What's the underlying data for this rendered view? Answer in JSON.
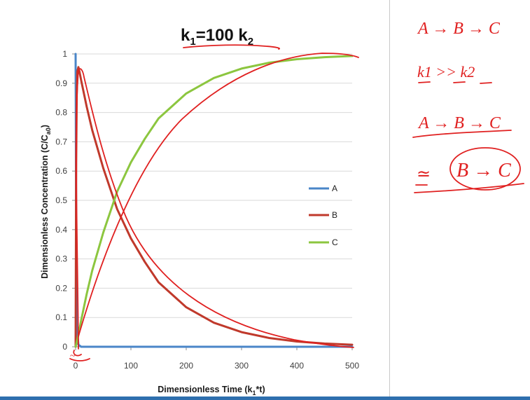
{
  "chart_data": {
    "type": "line",
    "title": "k1=100 k2",
    "title_parts": {
      "k": "k",
      "sub1": "1",
      "mid": "=100 k",
      "sub2": "2"
    },
    "xlabel": "Dimensionless Time (k1*t)",
    "xlabel_parts": {
      "pre": "Dimensionless Time (k",
      "sub": "1",
      "post": "*t)"
    },
    "ylabel": "Dimensionless Concentration (C/Ca0)",
    "ylabel_parts": {
      "pre": "Dimensionless Concentration (C/C",
      "sub": "a0",
      "post": ")"
    },
    "xlim": [
      0,
      500
    ],
    "ylim": [
      0,
      1
    ],
    "x_ticks": [
      0,
      100,
      200,
      300,
      400,
      500
    ],
    "x_tick_labels": [
      "0",
      "100",
      "200",
      "300",
      "400",
      "500"
    ],
    "y_ticks": [
      0,
      0.1,
      0.2,
      0.3,
      0.4,
      0.5,
      0.6,
      0.7,
      0.8,
      0.9,
      1
    ],
    "y_tick_labels": [
      "0",
      "0.1",
      "0.2",
      "0.3",
      "0.4",
      "0.5",
      "0.6",
      "0.7",
      "0.8",
      "0.9",
      "1"
    ],
    "grid": true,
    "legend_position": "right",
    "series": [
      {
        "name": "A",
        "color": "#4a86c8",
        "x": [
          0,
          1,
          2,
          3,
          5,
          10,
          500
        ],
        "y": [
          1,
          0.368,
          0.135,
          0.05,
          0.007,
          0,
          0
        ]
      },
      {
        "name": "B",
        "color": "#c0392b",
        "x": [
          0,
          1,
          2,
          3,
          5,
          7,
          10,
          20,
          30,
          50,
          75,
          100,
          125,
          150,
          200,
          250,
          300,
          350,
          400,
          450,
          500
        ],
        "y": [
          0,
          0.63,
          0.86,
          0.94,
          0.955,
          0.94,
          0.91,
          0.82,
          0.74,
          0.61,
          0.47,
          0.37,
          0.29,
          0.22,
          0.135,
          0.082,
          0.05,
          0.03,
          0.018,
          0.011,
          0.007
        ]
      },
      {
        "name": "C",
        "color": "#8cc63f",
        "x": [
          0,
          5,
          10,
          20,
          30,
          50,
          75,
          100,
          125,
          150,
          200,
          250,
          300,
          350,
          400,
          450,
          500
        ],
        "y": [
          0,
          0.04,
          0.09,
          0.18,
          0.26,
          0.39,
          0.53,
          0.63,
          0.71,
          0.78,
          0.865,
          0.918,
          0.95,
          0.97,
          0.982,
          0.989,
          0.993
        ]
      }
    ]
  },
  "annotations": {
    "line1": "A → B → C",
    "line2": "k1 >> k2",
    "line3": "A → B → C",
    "line4_approx": "≃",
    "line4_circled": "B → C",
    "bottom_mark": "~"
  }
}
